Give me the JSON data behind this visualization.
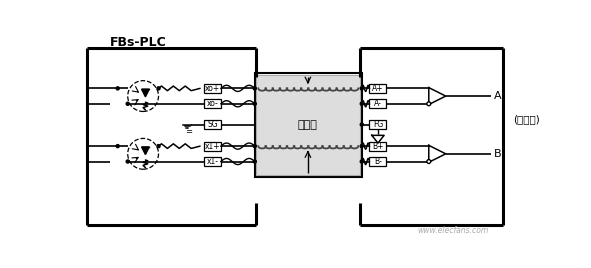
{
  "bg_color": "#ffffff",
  "line_color": "#000000",
  "title": "FBs-PLC",
  "label_encoder": "(编码器)",
  "label_A": "A",
  "label_B": "B",
  "label_shuang": "双绞线",
  "watermark": "www.elecfans.com",
  "fig_width": 5.91,
  "fig_height": 2.68,
  "dpi": 100
}
